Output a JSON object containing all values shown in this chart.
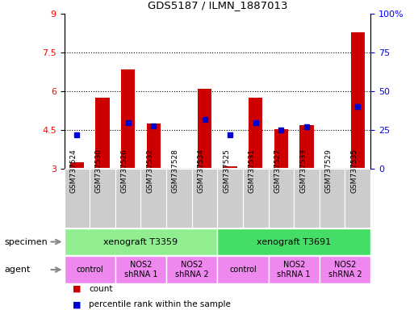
{
  "title": "GDS5187 / ILMN_1887013",
  "samples": [
    "GSM737524",
    "GSM737530",
    "GSM737526",
    "GSM737532",
    "GSM737528",
    "GSM737534",
    "GSM737525",
    "GSM737531",
    "GSM737527",
    "GSM737533",
    "GSM737529",
    "GSM737535"
  ],
  "counts": [
    3.25,
    5.75,
    6.85,
    4.75,
    3.0,
    6.1,
    3.1,
    5.75,
    4.55,
    4.7,
    3.0,
    8.3
  ],
  "percentile_data": [
    22,
    null,
    30,
    28,
    null,
    32,
    22,
    30,
    25,
    27,
    null,
    40
  ],
  "ylim_left": [
    3,
    9
  ],
  "ylim_right": [
    0,
    100
  ],
  "yticks_left": [
    3,
    4.5,
    6,
    7.5,
    9
  ],
  "ytick_labels_left": [
    "3",
    "4.5",
    "6",
    "7.5",
    "9"
  ],
  "yticks_right": [
    0,
    25,
    50,
    75,
    100
  ],
  "ytick_labels_right": [
    "0",
    "25",
    "50",
    "75",
    "100%"
  ],
  "bar_color": "#cc0000",
  "dot_color": "#0000cc",
  "bar_baseline": 3.0,
  "dotted_lines": [
    4.5,
    6.0,
    7.5
  ],
  "spec_groups": [
    {
      "label": "xenograft T3359",
      "start": 0,
      "end": 5,
      "color": "#90ee90"
    },
    {
      "label": "xenograft T3691",
      "start": 6,
      "end": 11,
      "color": "#44dd66"
    }
  ],
  "agent_groups": [
    {
      "label": "control",
      "start": 0,
      "end": 1
    },
    {
      "label": "NOS2\nshRNA 1",
      "start": 2,
      "end": 3
    },
    {
      "label": "NOS2\nshRNA 2",
      "start": 4,
      "end": 5
    },
    {
      "label": "control",
      "start": 6,
      "end": 7
    },
    {
      "label": "NOS2\nshRNA 1",
      "start": 8,
      "end": 9
    },
    {
      "label": "NOS2\nshRNA 2",
      "start": 10,
      "end": 11
    }
  ],
  "agent_color": "#ee88ee",
  "label_box_color": "#cccccc",
  "legend_count_label": "count",
  "legend_pct_label": "percentile rank within the sample",
  "specimen_label": "specimen",
  "agent_label": "agent"
}
